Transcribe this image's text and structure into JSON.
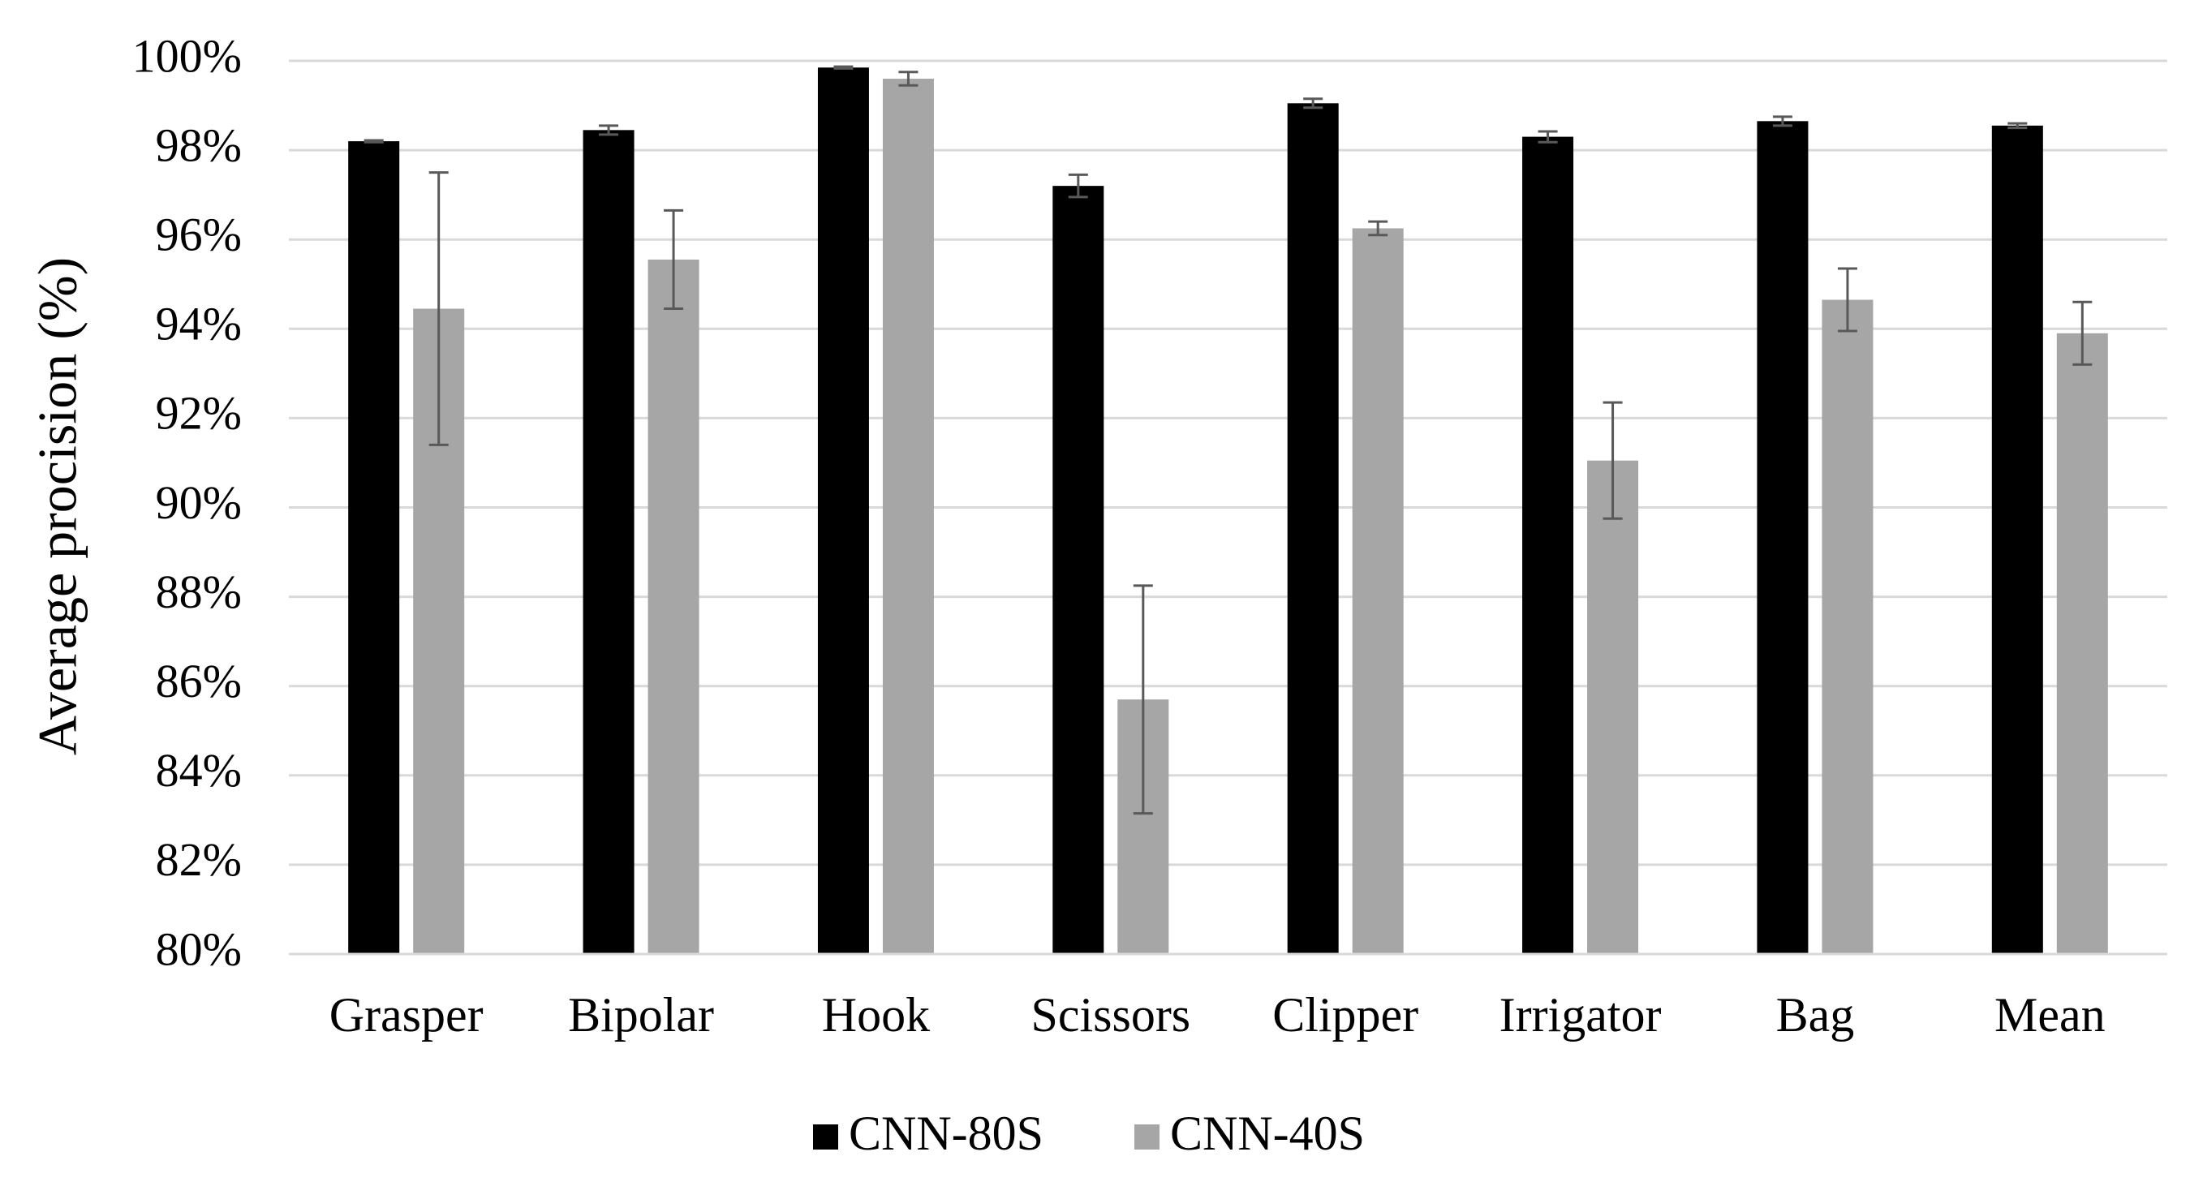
{
  "chart_data": {
    "type": "bar",
    "y_label": "Average procision (%)",
    "categories": [
      "Grasper",
      "Bipolar",
      "Hook",
      "Scissors",
      "Clipper",
      "Irrigator",
      "Bag",
      "Mean"
    ],
    "series": [
      {
        "name": "CNN-80S",
        "color": "#000000",
        "values": [
          98.2,
          98.45,
          99.85,
          97.2,
          99.05,
          98.3,
          98.65,
          98.55
        ],
        "errors": [
          0.02,
          0.1,
          0.02,
          0.25,
          0.1,
          0.12,
          0.1,
          0.05
        ]
      },
      {
        "name": "CNN-40S",
        "color": "#a6a6a6",
        "values": [
          94.45,
          95.55,
          99.6,
          85.7,
          96.25,
          91.05,
          94.65,
          93.9
        ],
        "errors": [
          3.05,
          1.1,
          0.15,
          2.55,
          0.15,
          1.3,
          0.7,
          0.7
        ]
      }
    ],
    "ylim": [
      80,
      100
    ],
    "yticks": [
      {
        "value": 80,
        "label": "80%"
      },
      {
        "value": 82,
        "label": "82%"
      },
      {
        "value": 84,
        "label": "84%"
      },
      {
        "value": 86,
        "label": "86%"
      },
      {
        "value": 88,
        "label": "88%"
      },
      {
        "value": 90,
        "label": "90%"
      },
      {
        "value": 92,
        "label": "92%"
      },
      {
        "value": 94,
        "label": "94%"
      },
      {
        "value": 96,
        "label": "96%"
      },
      {
        "value": 98,
        "label": "98%"
      },
      {
        "value": 100,
        "label": "100%"
      }
    ],
    "grid": true,
    "legend": "bottom"
  }
}
